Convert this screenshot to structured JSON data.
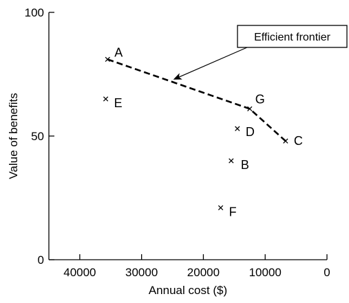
{
  "chart_data": {
    "type": "scatter",
    "title": "",
    "xlabel": "Annual cost ($)",
    "ylabel": "Value of benefits",
    "xlim": [
      45000,
      0
    ],
    "ylim": [
      0,
      100
    ],
    "x_reversed": true,
    "x_ticks": [
      40000,
      30000,
      20000,
      10000,
      0
    ],
    "x_tick_labels": [
      "40000",
      "30000",
      "20000",
      "10000",
      "0"
    ],
    "y_ticks": [
      0,
      50,
      100
    ],
    "y_tick_labels": [
      "0",
      "50",
      "100"
    ],
    "grid": false,
    "points": [
      {
        "label": "A",
        "x": 35500,
        "y": 81
      },
      {
        "label": "B",
        "x": 15500,
        "y": 40
      },
      {
        "label": "C",
        "x": 6700,
        "y": 48
      },
      {
        "label": "D",
        "x": 14500,
        "y": 53
      },
      {
        "label": "E",
        "x": 35800,
        "y": 65
      },
      {
        "label": "F",
        "x": 17200,
        "y": 21
      },
      {
        "label": "G",
        "x": 12500,
        "y": 61
      }
    ],
    "frontier": {
      "style": "dashed",
      "point_labels": [
        "A",
        "G",
        "C"
      ]
    },
    "annotation": {
      "text": "Efficient frontier",
      "arrow_target": {
        "x": 25000,
        "y": 72.5
      }
    }
  },
  "colors": {
    "ink": "#000000",
    "background": "#ffffff"
  }
}
